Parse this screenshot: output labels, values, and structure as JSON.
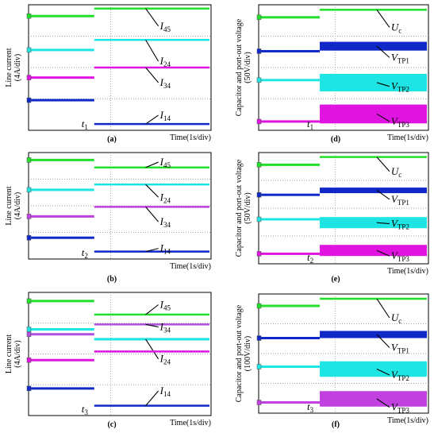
{
  "chart_data": [
    {
      "panel": "(a)",
      "type": "line",
      "xlabel": "Time(1s/div)",
      "ylabel_lines": [
        "Line current",
        "(4A/div)"
      ],
      "event_label": "t",
      "event_sub": "1",
      "series": [
        {
          "name": "I",
          "sub": "45",
          "color": "#22e02a",
          "before": 0.91,
          "after": 0.97,
          "noise": 0
        },
        {
          "name": "I",
          "sub": "24",
          "color": "#1ee4e4",
          "before": 0.64,
          "after": 0.72,
          "noise": 0
        },
        {
          "name": "I",
          "sub": "34",
          "color": "#e014e0",
          "before": 0.42,
          "after": 0.5,
          "noise": 0
        },
        {
          "name": "I",
          "sub": "14",
          "color": "#1028c8",
          "before": 0.24,
          "after": 0.05,
          "noise": 0
        }
      ]
    },
    {
      "panel": "(b)",
      "type": "line",
      "xlabel": "Time(1s/div)",
      "ylabel_lines": [
        "Line current",
        "(4A/div)"
      ],
      "event_label": "t",
      "event_sub": "2",
      "series": [
        {
          "name": "I",
          "sub": "45",
          "color": "#22e02a",
          "before": 0.93,
          "after": 0.86,
          "noise": 0
        },
        {
          "name": "I",
          "sub": "24",
          "color": "#1ee4e4",
          "before": 0.65,
          "after": 0.7,
          "noise": 0
        },
        {
          "name": "I",
          "sub": "34",
          "color": "#c040e0",
          "before": 0.4,
          "after": 0.49,
          "noise": 0
        },
        {
          "name": "I",
          "sub": "14",
          "color": "#1028c8",
          "before": 0.2,
          "after": 0.07,
          "noise": 0
        }
      ]
    },
    {
      "panel": "(c)",
      "type": "line",
      "xlabel": "Time(1s/div)",
      "ylabel_lines": [
        "Line current",
        "(4A/div)"
      ],
      "event_label": "t",
      "event_sub": "3",
      "series": [
        {
          "name": "I",
          "sub": "45",
          "color": "#22e02a",
          "before": 0.93,
          "after": 0.82,
          "noise": 0
        },
        {
          "name": "I",
          "sub": "34",
          "color": "#b050e0",
          "before": 0.66,
          "after": 0.74,
          "noise": 0
        },
        {
          "name": "I",
          "sub": "24",
          "color": "#1ee4e4",
          "before": 0.7,
          "after": 0.62,
          "noise": 0.02
        },
        {
          "name": "I",
          "sub": "",
          "color": "#e014e0",
          "before": 0.45,
          "after": 0.52,
          "noise": 0
        },
        {
          "name": "I",
          "sub": "14",
          "color": "#1028c8",
          "before": 0.22,
          "after": 0.08,
          "noise": 0
        }
      ]
    },
    {
      "panel": "(d)",
      "type": "line",
      "xlabel": "Time(1s/div)",
      "ylabel_lines": [
        "Capacitor and port-out voltage",
        "(50V/div)"
      ],
      "event_label": "t",
      "event_sub": "1",
      "series": [
        {
          "name": "U",
          "sub": "c",
          "color": "#22e02a",
          "before": 0.9,
          "after": 0.96,
          "noise": 0
        },
        {
          "name": "V",
          "sub": "TP1",
          "color": "#1028c8",
          "before": 0.63,
          "after": 0.67,
          "noise": 0.07
        },
        {
          "name": "V",
          "sub": "TP2",
          "color": "#1ee4e4",
          "before": 0.4,
          "after": 0.38,
          "noise": 0.14
        },
        {
          "name": "V",
          "sub": "TP3",
          "color": "#e014e0",
          "before": 0.07,
          "after": 0.13,
          "noise": 0.15
        }
      ]
    },
    {
      "panel": "(e)",
      "type": "line",
      "xlabel": "Time(1s/div)",
      "ylabel_lines": [
        "Capacitor and port-out voltage",
        "(50V/div)"
      ],
      "event_label": "t",
      "event_sub": "2",
      "series": [
        {
          "name": "U",
          "sub": "c",
          "color": "#22e02a",
          "before": 0.89,
          "after": 0.96,
          "noise": 0
        },
        {
          "name": "V",
          "sub": "TP1",
          "color": "#1028c8",
          "before": 0.62,
          "after": 0.66,
          "noise": 0.05
        },
        {
          "name": "V",
          "sub": "TP2",
          "color": "#1ee4e4",
          "before": 0.4,
          "after": 0.37,
          "noise": 0.1
        },
        {
          "name": "V",
          "sub": "TP3",
          "color": "#e014e0",
          "before": 0.09,
          "after": 0.12,
          "noise": 0.1
        }
      ]
    },
    {
      "panel": "(f)",
      "type": "line",
      "xlabel": "Time(1s/div)",
      "ylabel_lines": [
        "Capacitor and port-out voltage",
        "(100V/div)"
      ],
      "event_label": "t",
      "event_sub": "3",
      "series": [
        {
          "name": "U",
          "sub": "c",
          "color": "#22e02a",
          "before": 0.9,
          "after": 0.96,
          "noise": 0
        },
        {
          "name": "V",
          "sub": "TP1",
          "color": "#1028c8",
          "before": 0.63,
          "after": 0.66,
          "noise": 0.06
        },
        {
          "name": "V",
          "sub": "TP2",
          "color": "#1ee4e4",
          "before": 0.39,
          "after": 0.37,
          "noise": 0.13
        },
        {
          "name": "V",
          "sub": "TP3",
          "color": "#c040e0",
          "before": 0.09,
          "after": 0.12,
          "noise": 0.13
        }
      ]
    }
  ]
}
